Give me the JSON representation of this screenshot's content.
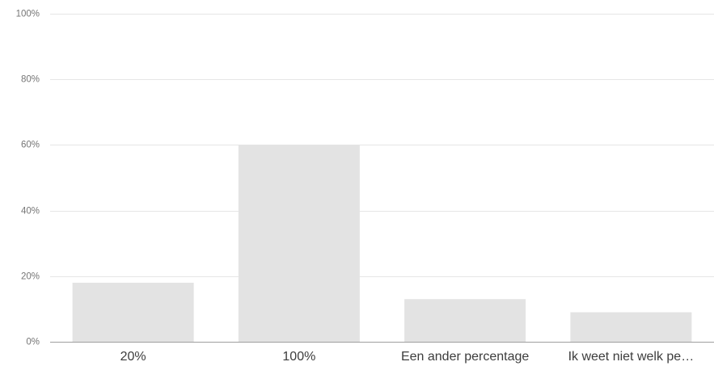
{
  "chart_data": {
    "type": "bar",
    "categories": [
      "20%",
      "100%",
      "Een ander percentage",
      "Ik weet niet welk pe…"
    ],
    "values": [
      18,
      60,
      13,
      9
    ],
    "ylim": [
      0,
      100
    ],
    "yticks": [
      0,
      20,
      40,
      60,
      80,
      100
    ],
    "ytick_labels": [
      "0%",
      "20%",
      "40%",
      "60%",
      "80%",
      "100%"
    ],
    "grid": true,
    "bar_color": "#e3e3e3",
    "title": "",
    "xlabel": "",
    "ylabel": ""
  }
}
